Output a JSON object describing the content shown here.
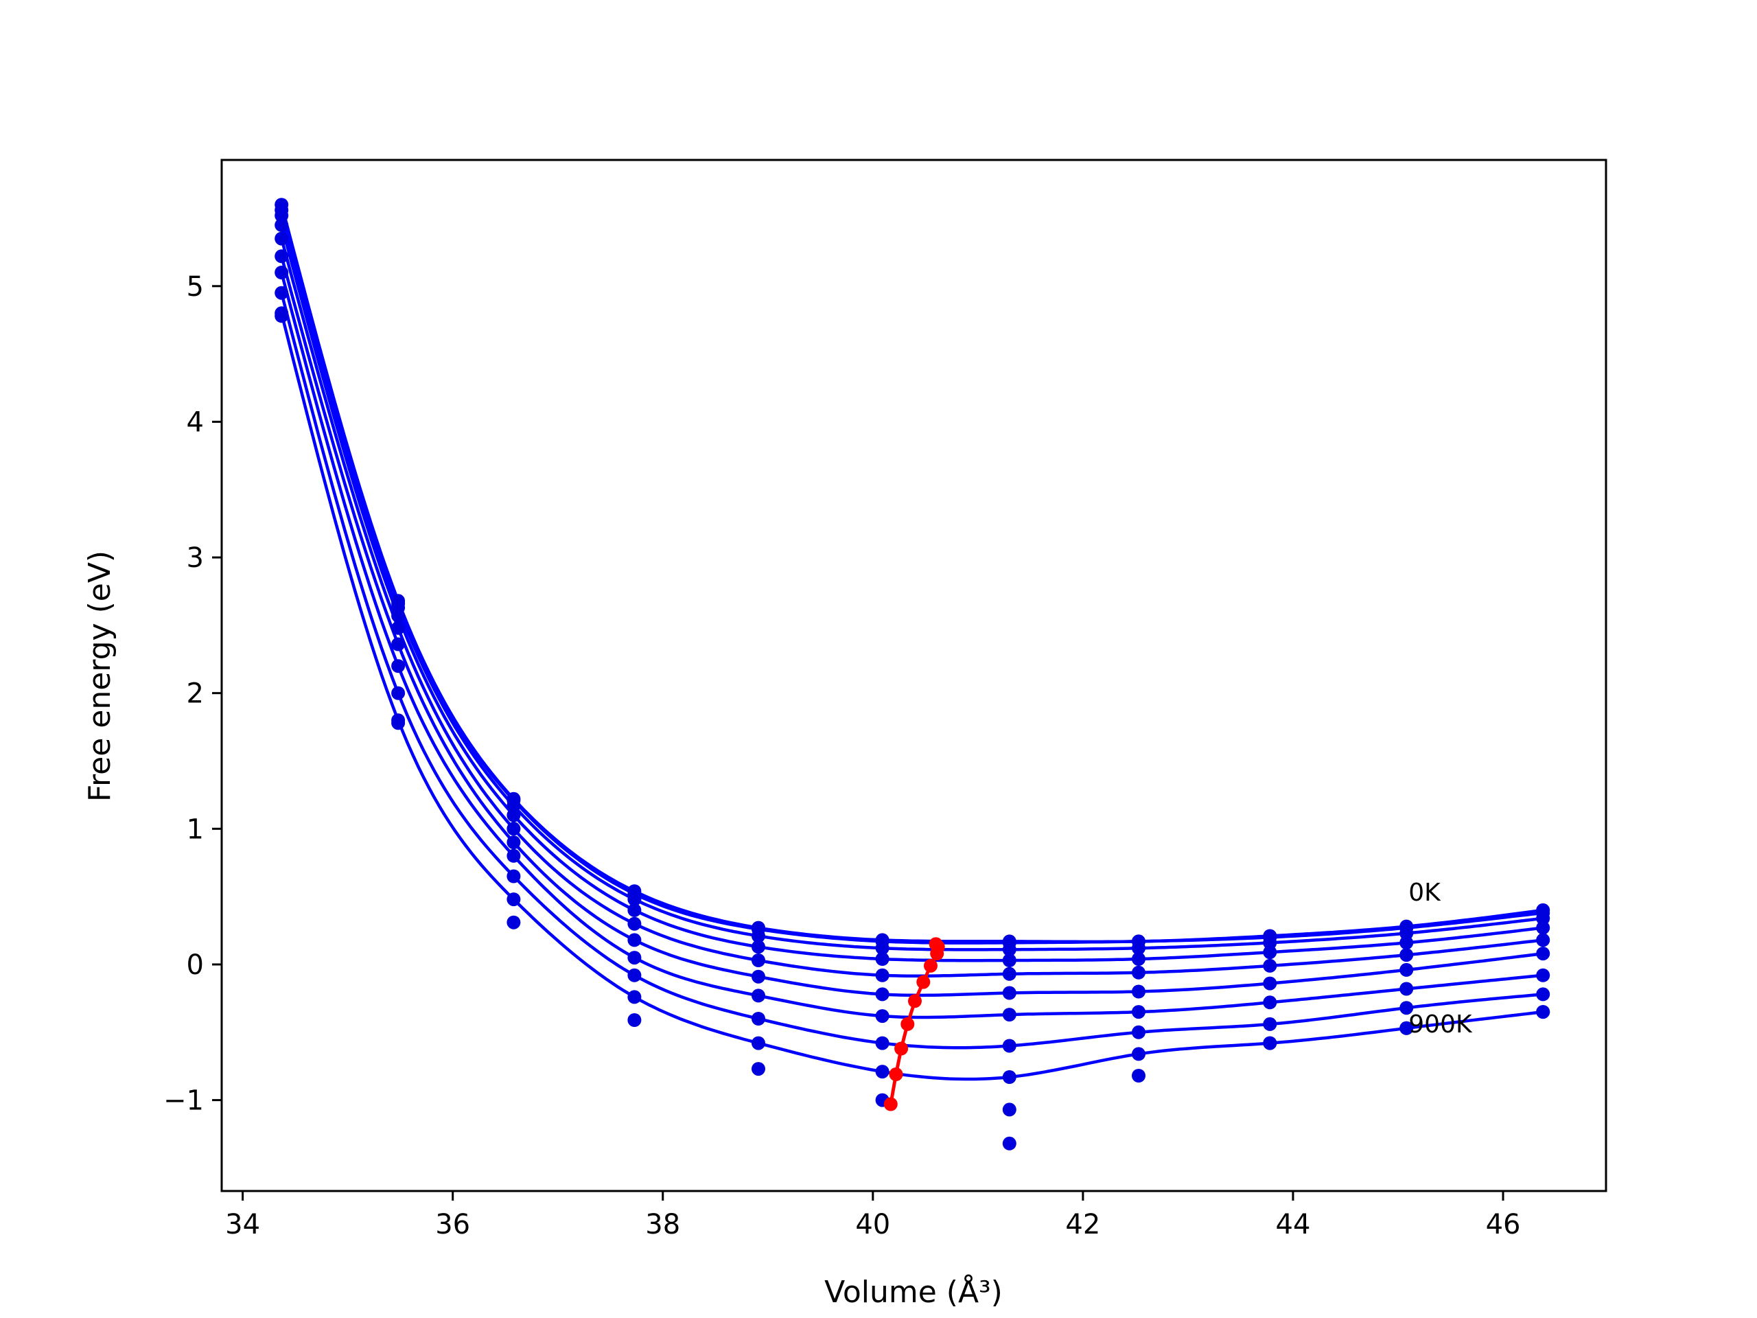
{
  "chart_data": {
    "type": "line",
    "title": "",
    "xlabel": "Volume (Å³)",
    "ylabel": "Free energy (eV)",
    "xlim": [
      33.8,
      46.98
    ],
    "ylim": [
      -1.67,
      5.93
    ],
    "xticks": [
      34,
      36,
      38,
      40,
      42,
      44,
      46
    ],
    "yticks": [
      -1,
      0,
      1,
      2,
      3,
      4,
      5
    ],
    "xtick_labels": [
      "34",
      "36",
      "38",
      "40",
      "42",
      "44",
      "46"
    ],
    "ytick_labels": [
      "−1",
      "0",
      "1",
      "2",
      "3",
      "4",
      "5"
    ],
    "grid": false,
    "legend": "none",
    "colors": {
      "curves": "#0000ff",
      "points": "#0000dd",
      "minima": "#ff0000"
    },
    "volumes": [
      34.37,
      35.48,
      36.58,
      37.73,
      38.91,
      40.09,
      41.3,
      42.53,
      43.78,
      45.08,
      46.38
    ],
    "series": [
      {
        "values": [
          5.6,
          2.68,
          1.22,
          0.54,
          0.27,
          0.18,
          0.17,
          0.17,
          0.21,
          0.28,
          0.4
        ]
      },
      {
        "values": [
          5.56,
          2.66,
          1.21,
          0.52,
          0.26,
          0.17,
          0.16,
          0.17,
          0.2,
          0.27,
          0.38
        ]
      },
      {
        "values": [
          5.52,
          2.63,
          1.17,
          0.48,
          0.21,
          0.12,
          0.11,
          0.12,
          0.16,
          0.23,
          0.34
        ]
      },
      {
        "values": [
          5.45,
          2.57,
          1.1,
          0.4,
          0.13,
          0.04,
          0.03,
          0.04,
          0.09,
          0.16,
          0.27
        ]
      },
      {
        "values": [
          5.35,
          2.48,
          1.0,
          0.3,
          0.03,
          -0.08,
          -0.07,
          -0.06,
          -0.01,
          0.07,
          0.18
        ]
      },
      {
        "values": [
          5.22,
          2.36,
          0.9,
          0.18,
          -0.09,
          -0.22,
          -0.21,
          -0.2,
          -0.14,
          -0.04,
          0.08
        ]
      },
      {
        "values": [
          5.1,
          2.2,
          0.8,
          0.05,
          -0.23,
          -0.38,
          -0.37,
          -0.35,
          -0.28,
          -0.18,
          -0.08
        ]
      },
      {
        "values": [
          4.95,
          2.0,
          0.65,
          -0.08,
          -0.4,
          -0.58,
          -0.6,
          -0.5,
          -0.44,
          -0.32,
          -0.22
        ]
      },
      {
        "values": [
          4.8,
          1.8,
          0.48,
          -0.24,
          -0.58,
          -0.79,
          -0.83,
          -0.66,
          -0.58,
          -0.47,
          -0.35
        ]
      },
      {
        "values": [
          4.78,
          1.78,
          0.31,
          -0.41,
          -0.77,
          -1.0,
          -1.32,
          -0.82,
          -0.58,
          -0.47,
          -0.35
        ]
      }
    ],
    "extra_points": [
      {
        "x": 41.3,
        "y": -1.07
      }
    ],
    "minima": {
      "x": [
        40.6,
        40.62,
        40.61,
        40.55,
        40.48,
        40.4,
        40.33,
        40.27,
        40.22,
        40.17
      ],
      "y": [
        0.15,
        0.13,
        0.08,
        -0.01,
        -0.13,
        -0.27,
        -0.44,
        -0.62,
        -0.81,
        -1.03
      ]
    },
    "annotations": [
      {
        "text": "0K",
        "x": 45.1,
        "y": 0.47
      },
      {
        "text": "900K",
        "x": 45.1,
        "y": -0.5
      }
    ]
  }
}
